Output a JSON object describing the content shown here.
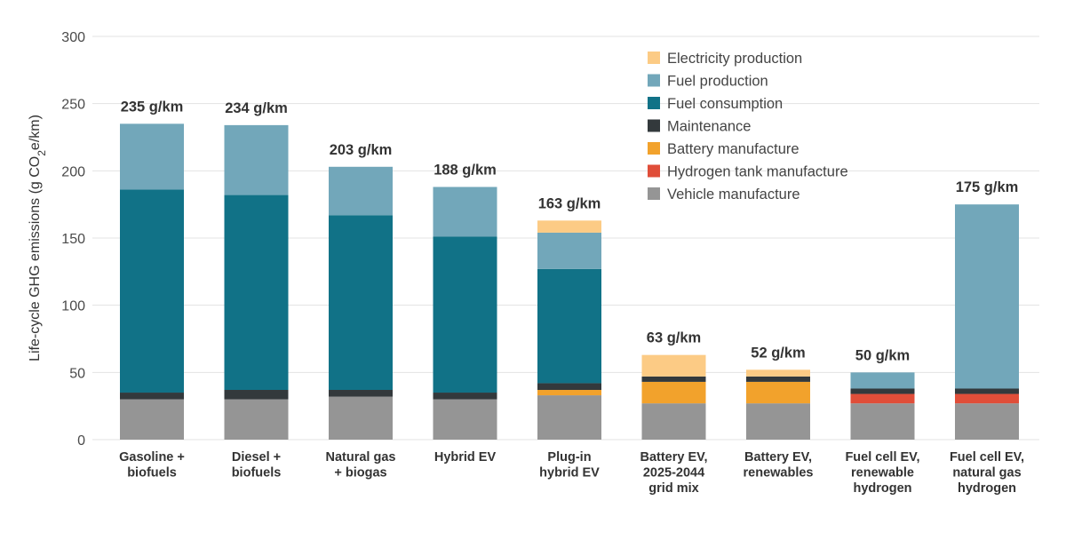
{
  "chart_data": {
    "type": "bar",
    "stacked": true,
    "ylabel": "Life-cycle GHG emissions (g CO",
    "ylabel_sub": "2",
    "ylabel_tail": "e/km)",
    "ylim": [
      0,
      300
    ],
    "yticks": [
      "0",
      "50",
      "100",
      "150",
      "200",
      "250",
      "300"
    ],
    "grid": true,
    "legend_position": "top-right",
    "categories": [
      [
        "Gasoline +",
        "biofuels"
      ],
      [
        "Diesel +",
        "biofuels"
      ],
      [
        "Natural gas",
        "+ biogas"
      ],
      [
        "Hybrid EV"
      ],
      [
        "Plug-in",
        "hybrid EV"
      ],
      [
        "Battery EV,",
        "2025-2044",
        "grid mix"
      ],
      [
        "Battery EV,",
        "renewables"
      ],
      [
        "Fuel cell EV,",
        "renewable",
        "hydrogen"
      ],
      [
        "Fuel cell EV,",
        "natural gas",
        "hydrogen"
      ]
    ],
    "totals": [
      "235 g/km",
      "234 g/km",
      "203 g/km",
      "188 g/km",
      "163 g/km",
      "63 g/km",
      "52 g/km",
      "50 g/km",
      "175 g/km"
    ],
    "series": [
      {
        "name": "Vehicle manufacture",
        "color": "#959595",
        "values": [
          30,
          30,
          32,
          30,
          33,
          27,
          27,
          27,
          27
        ]
      },
      {
        "name": "Hydrogen tank manufacture",
        "color": "#e04e39",
        "values": [
          0,
          0,
          0,
          0,
          0,
          0,
          0,
          7,
          7
        ]
      },
      {
        "name": "Battery manufacture",
        "color": "#f2a22c",
        "values": [
          0,
          0,
          0,
          0,
          4,
          16,
          16,
          0,
          0
        ]
      },
      {
        "name": "Maintenance",
        "color": "#33393c",
        "values": [
          5,
          7,
          5,
          5,
          5,
          4,
          4,
          4,
          4
        ]
      },
      {
        "name": "Fuel consumption",
        "color": "#117287",
        "values": [
          151,
          145,
          130,
          116,
          85,
          0,
          0,
          0,
          0
        ]
      },
      {
        "name": "Fuel production",
        "color": "#72a7ba",
        "values": [
          49,
          52,
          36,
          37,
          27,
          0,
          0,
          12,
          137
        ]
      },
      {
        "name": "Electricity production",
        "color": "#fccb85",
        "values": [
          0,
          0,
          0,
          0,
          9,
          16,
          5,
          0,
          0
        ]
      }
    ],
    "legend_order": [
      "Electricity production",
      "Fuel production",
      "Fuel consumption",
      "Maintenance",
      "Battery manufacture",
      "Hydrogen tank manufacture",
      "Vehicle manufacture"
    ]
  }
}
